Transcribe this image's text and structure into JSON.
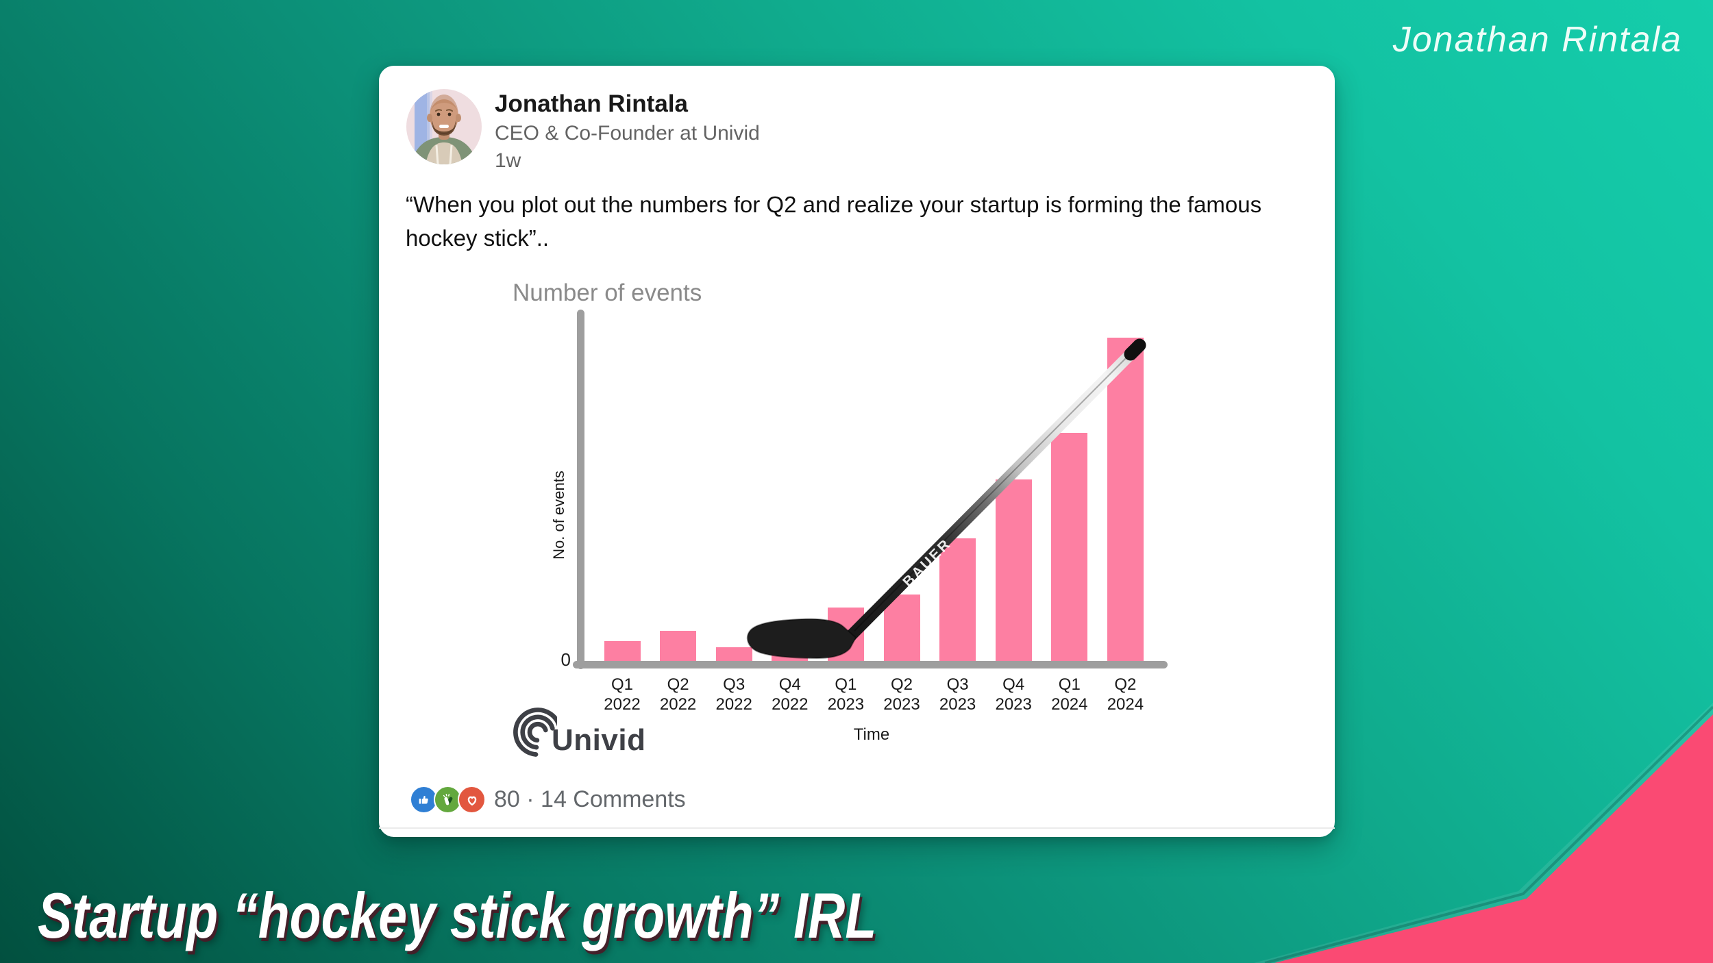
{
  "slide": {
    "signature": "Jonathan Rintala",
    "caption": "Startup “hockey stick growth” IRL"
  },
  "post": {
    "author": "Jonathan Rintala",
    "headline": "CEO & Co-Founder at Univid",
    "posted_ago": "1w",
    "body": "“When you plot out the numbers for Q2 and realize your startup is forming the famous hockey stick”..",
    "reactions": {
      "icons": [
        "thumbs-up-icon",
        "clap-icon",
        "heart-icon"
      ],
      "summary": "80 · 14 Comments"
    },
    "brand_logo_text": "Univid"
  },
  "chart_data": {
    "type": "bar",
    "title": "Number of events",
    "ylabel": "No. of events",
    "xlabel": "Time",
    "categories": [
      "Q1 2022",
      "Q2 2022",
      "Q3 2022",
      "Q4 2022",
      "Q1 2023",
      "Q2 2023",
      "Q3 2023",
      "Q4 2023",
      "Q1 2024",
      "Q2 2024"
    ],
    "values": [
      8,
      11,
      6,
      13,
      18,
      22,
      39,
      57,
      71,
      100
    ],
    "ylim": [
      0,
      105
    ],
    "ytick_labels": [
      "0"
    ],
    "grid": false,
    "legend": "none",
    "bar_color": "#fd7fa2",
    "axis_color": "#9e9e9e",
    "annotation": "hockey stick photo overlaid along the rising bar tops",
    "stick_brand": "BAUER"
  },
  "colors": {
    "background_bottom_left": "#02503f",
    "background_top_right": "#15cdab",
    "corner_accent": "#fa4a73",
    "card": "#ffffff"
  }
}
